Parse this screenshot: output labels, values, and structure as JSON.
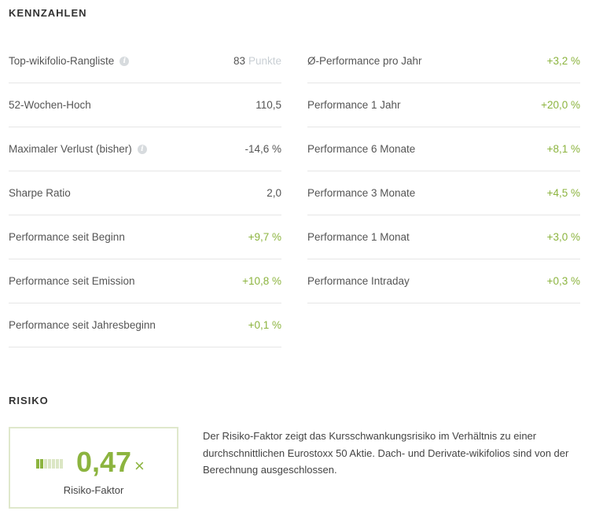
{
  "kennzahlen": {
    "title": "KENNZAHLEN",
    "left": [
      {
        "label": "Top-wikifolio-Rangliste",
        "value": "83",
        "suffix": "Punkte",
        "info": true,
        "positive": false
      },
      {
        "label": "52-Wochen-Hoch",
        "value": "110,5",
        "positive": false
      },
      {
        "label": "Maximaler Verlust (bisher)",
        "value": "-14,6 %",
        "info": true,
        "positive": false
      },
      {
        "label": "Sharpe Ratio",
        "value": "2,0",
        "positive": false
      },
      {
        "label": "Performance seit Beginn",
        "value": "+9,7 %",
        "positive": true
      },
      {
        "label": "Performance seit Emission",
        "value": "+10,8 %",
        "positive": true
      },
      {
        "label": "Performance seit Jahresbeginn",
        "value": "+0,1 %",
        "positive": true
      }
    ],
    "right": [
      {
        "label": "Ø-Performance pro Jahr",
        "value": "+3,2 %",
        "positive": true
      },
      {
        "label": "Performance 1 Jahr",
        "value": "+20,0 %",
        "positive": true
      },
      {
        "label": "Performance 6 Monate",
        "value": "+8,1 %",
        "positive": true
      },
      {
        "label": "Performance 3 Monate",
        "value": "+4,5 %",
        "positive": true
      },
      {
        "label": "Performance 1 Monat",
        "value": "+3,0 %",
        "positive": true
      },
      {
        "label": "Performance Intraday",
        "value": "+0,3 %",
        "positive": true
      }
    ]
  },
  "risiko": {
    "title": "RISIKO",
    "value": "0,47",
    "multiplier": "×",
    "label": "Risiko-Faktor",
    "level_segments_filled": 2,
    "level_segments_total": 7,
    "description": "Der Risiko-Faktor zeigt das Kursschwankungsrisiko im Verhältnis zu einer durchschnittlichen Eurostoxx 50 Aktie. Dach- und Derivate-wikifolios sind von der Berechnung ausgeschlossen."
  },
  "info_icon": "i",
  "colors": {
    "positive": "#8cb43f",
    "box_border": "#dfe8cc",
    "divider": "#e6e6e6"
  }
}
